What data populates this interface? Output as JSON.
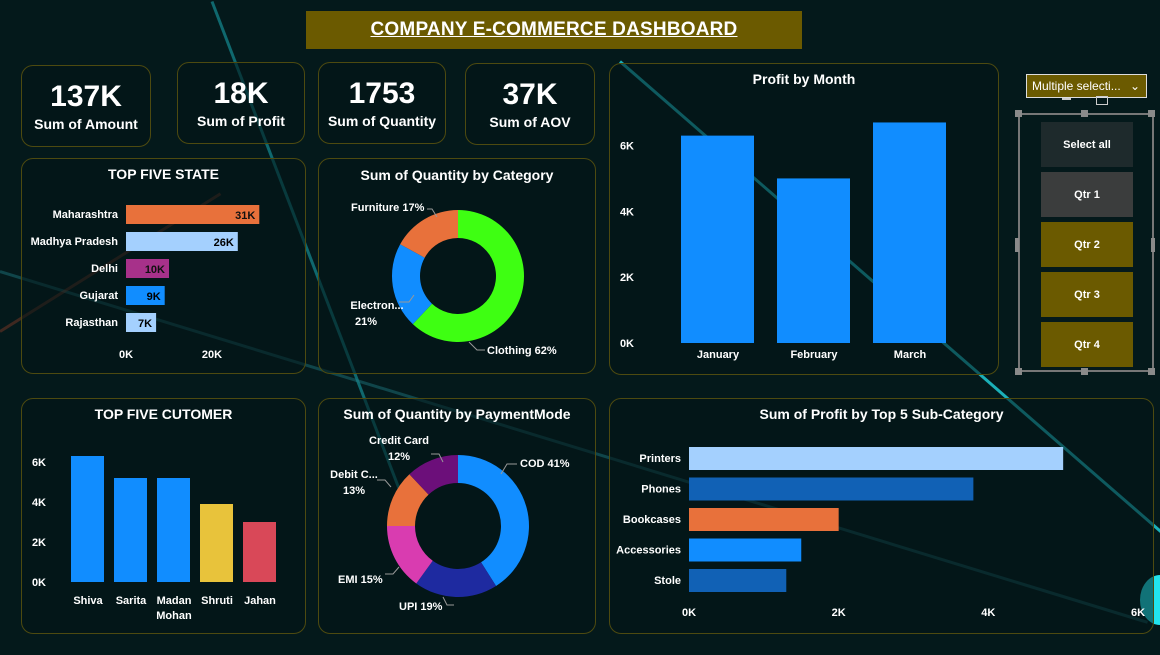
{
  "dashboard": {
    "title": "COMPANY E-COMMERCE DASHBOARD"
  },
  "kpis": [
    {
      "value": "137K",
      "label": "Sum of Amount"
    },
    {
      "value": "18K",
      "label": "Sum of Profit"
    },
    {
      "value": "1753",
      "label": "Sum of Quantity"
    },
    {
      "value": "37K",
      "label": "Sum of AOV"
    }
  ],
  "slicer": {
    "dropdown_value": "Multiple selecti...",
    "items": [
      "Select all",
      "Qtr 1",
      "Qtr 2",
      "Qtr 3",
      "Qtr 4"
    ],
    "selected": [
      false,
      false,
      true,
      true,
      true
    ]
  },
  "colors": {
    "blue": "#118dff",
    "light_blue": "#a4d0fe",
    "dark_blue": "#1161b5",
    "orange": "#e8713b",
    "purple": "#a7318a",
    "yellow": "#e8c33b",
    "red": "#d94858",
    "green": "#3eff12",
    "navy": "#1e2aa0",
    "magenta": "#d93cb0",
    "violet": "#6c0f7a",
    "banner": "#6b5a00"
  },
  "chart_data": [
    {
      "id": "top_states",
      "type": "bar",
      "orientation": "horizontal",
      "title": "TOP FIVE STATE",
      "categories": [
        "Maharashtra",
        "Madhya Pradesh",
        "Delhi",
        "Gujarat",
        "Rajasthan"
      ],
      "values": [
        31000,
        26000,
        10000,
        9000,
        7000
      ],
      "data_labels": [
        "31K",
        "26K",
        "10K",
        "9K",
        "7K"
      ],
      "colors": [
        "#e8713b",
        "#a4d0fe",
        "#a7318a",
        "#118dff",
        "#a4d0fe"
      ],
      "x_ticks": [
        "0K",
        "20K"
      ],
      "xlim": [
        0,
        40000
      ]
    },
    {
      "id": "qty_by_category",
      "type": "pie",
      "donut": true,
      "title": "Sum of Quantity by Category",
      "labels": [
        "Clothing",
        "Electron...",
        "Furniture"
      ],
      "values": [
        62,
        21,
        17
      ],
      "colors": [
        "#3eff12",
        "#118dff",
        "#e8713b"
      ],
      "data_labels": [
        "Clothing 62%",
        "Electron... 21%",
        "Furniture 17%"
      ]
    },
    {
      "id": "profit_by_month",
      "type": "bar",
      "title": "Profit by Month",
      "categories": [
        "January",
        "February",
        "March"
      ],
      "values": [
        6300,
        5000,
        6700
      ],
      "y_ticks": [
        "0K",
        "2K",
        "4K",
        "6K"
      ],
      "ylim": [
        0,
        7200
      ],
      "color": "#118dff"
    },
    {
      "id": "top_customers",
      "type": "bar",
      "title": "TOP FIVE CUTOMER",
      "categories": [
        "Shiva",
        "Sarita",
        "Madan Mohan",
        "Shruti",
        "Jahan"
      ],
      "values": [
        6300,
        5200,
        5200,
        3900,
        3000
      ],
      "colors": [
        "#118dff",
        "#118dff",
        "#118dff",
        "#e8c33b",
        "#d94858"
      ],
      "y_ticks": [
        "0K",
        "2K",
        "4K",
        "6K"
      ],
      "ylim": [
        0,
        7000
      ]
    },
    {
      "id": "qty_by_payment",
      "type": "pie",
      "donut": true,
      "title": "Sum of Quantity by PaymentMode",
      "labels": [
        "COD",
        "UPI",
        "EMI",
        "Debit C...",
        "Credit Card"
      ],
      "values": [
        41,
        19,
        15,
        13,
        12
      ],
      "colors": [
        "#118dff",
        "#1e2aa0",
        "#d93cb0",
        "#e8713b",
        "#6c0f7a"
      ],
      "data_labels": [
        "COD 41%",
        "UPI 19%",
        "EMI 15%",
        "Debit C... 13%",
        "Credit Card 12%"
      ]
    },
    {
      "id": "profit_by_subcategory",
      "type": "bar",
      "orientation": "horizontal",
      "title": "Sum of Profit by Top 5 Sub-Category",
      "categories": [
        "Printers",
        "Phones",
        "Bookcases",
        "Accessories",
        "Stole"
      ],
      "values": [
        5000,
        3800,
        2000,
        1500,
        1300
      ],
      "colors": [
        "#a4d0fe",
        "#1161b5",
        "#e8713b",
        "#118dff",
        "#1161b5"
      ],
      "x_ticks": [
        "0K",
        "2K",
        "4K",
        "6K"
      ],
      "xlim": [
        0,
        6000
      ]
    }
  ]
}
